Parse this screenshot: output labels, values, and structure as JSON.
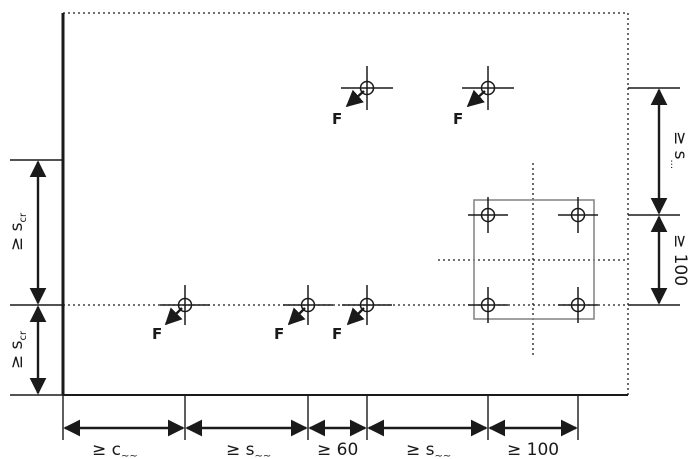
{
  "force_label": "F",
  "dimensions": {
    "bottom": [
      {
        "main": "≥ c",
        "sub": "~~"
      },
      {
        "main": "≥ s",
        "sub": "~~"
      },
      {
        "main": "≥ 60",
        "sub": ""
      },
      {
        "main": "≥ s",
        "sub": "~~"
      },
      {
        "main": "≥ 100",
        "sub": ""
      }
    ],
    "left": [
      {
        "main": "≥ s",
        "sub": "cr"
      },
      {
        "main": "≥ s",
        "sub": "cr"
      }
    ],
    "right": [
      {
        "main": "≥ s",
        "sub": "..."
      },
      {
        "main": "≥ 100",
        "sub": ""
      }
    ]
  },
  "colors": {
    "line": "#1a1a1a",
    "frame": "#888888"
  }
}
